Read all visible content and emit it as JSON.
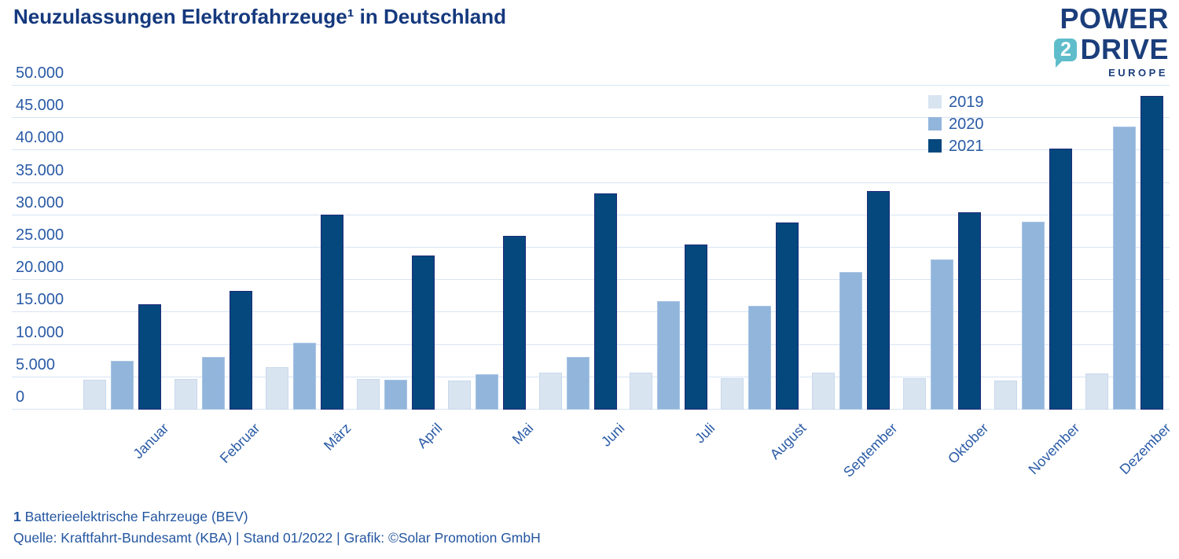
{
  "header": {
    "title": "Neuzulassungen Elektrofahrzeuge¹ in Deutschland"
  },
  "logo": {
    "line1": "POWER",
    "badge": "2",
    "line2": "DRIVE",
    "line3": "EUROPE",
    "navy": "#1b3e7b",
    "teal": "#5fbdcb"
  },
  "chart_data": {
    "type": "bar",
    "title": "Neuzulassungen Elektrofahrzeuge (BEV) in Deutschland",
    "categories": [
      "Januar",
      "Februar",
      "März",
      "April",
      "Mai",
      "Juni",
      "Juli",
      "August",
      "September",
      "Oktober",
      "November",
      "Dezember"
    ],
    "series": [
      {
        "name": "2019",
        "color": "#d9e4f1",
        "border": "#c9d9ec",
        "values": [
          4600,
          4700,
          6600,
          4700,
          4500,
          5700,
          5700,
          4900,
          5700,
          4800,
          4500,
          5600
        ]
      },
      {
        "name": "2020",
        "color": "#92b5db",
        "border": "#a8c4e5",
        "values": [
          7500,
          8100,
          10300,
          4600,
          5500,
          8100,
          16800,
          16000,
          21200,
          23200,
          29000,
          43700
        ]
      },
      {
        "name": "2021",
        "color": "#05487e",
        "border": "#1d2b78",
        "values": [
          16300,
          18300,
          30100,
          23800,
          26800,
          33400,
          25500,
          28900,
          33700,
          30500,
          40300,
          48400
        ]
      }
    ],
    "xlabel": "",
    "ylabel": "",
    "ylim": [
      0,
      50000
    ],
    "ytick_step": 5000,
    "y_ticks": [
      "0",
      "5.000",
      "10.000",
      "15.000",
      "20.000",
      "25.000",
      "30.000",
      "35.000",
      "40.000",
      "45.000",
      "50.000"
    ],
    "grid": true,
    "legend_position": "top-right",
    "gridline_color": "#d7e4f3",
    "text_color": "#2a5ba6"
  },
  "footnote": {
    "marker": "1",
    "text": "Batterieelektrische Fahrzeuge (BEV)",
    "source": "Quelle: Kraftfahrt-Bundesamt (KBA) | Stand 01/2022 | Grafik: ©Solar Promotion GmbH"
  }
}
